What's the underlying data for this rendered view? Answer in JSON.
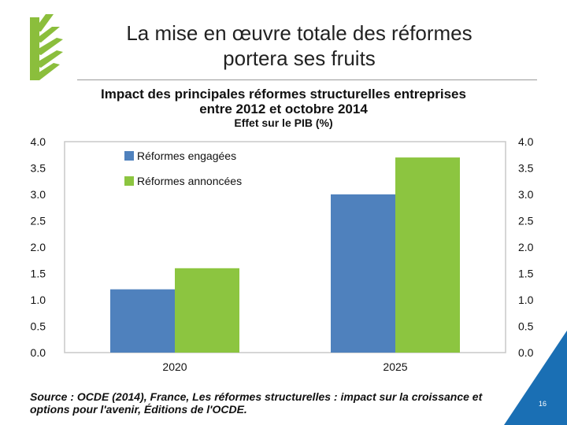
{
  "slide": {
    "title_line1": "La mise en œuvre totale des réformes",
    "title_line2": "portera ses fruits",
    "page_number": "16",
    "colors": {
      "accent": "#1a6fb4",
      "logo_green": "#8bbe3c"
    }
  },
  "source": {
    "italic_part": "Source : ",
    "text": "OCDE (2014), France, Les réformes structurelles : impact sur la croissance et options pour l'avenir, Éditions de l'OCDE."
  },
  "chart_data": {
    "type": "bar",
    "title_line1": "Impact des principales réformes structurelles entreprises",
    "title_line2": "entre 2012 et octobre 2014",
    "subtitle": "Effet sur le PIB (%)",
    "categories": [
      "2020",
      "2025"
    ],
    "series": [
      {
        "name": "Réformes engagées",
        "values": [
          1.2,
          3.0
        ],
        "color": "#4f81bd"
      },
      {
        "name": "Réformes annoncées",
        "values": [
          1.6,
          3.7
        ],
        "color": "#8cc540"
      }
    ],
    "ylim": [
      0,
      4.0
    ],
    "yticks": [
      "0.0",
      "0.5",
      "1.0",
      "1.5",
      "2.0",
      "2.5",
      "3.0",
      "3.5",
      "4.0"
    ],
    "legend_position": "top-left",
    "grid": false
  }
}
